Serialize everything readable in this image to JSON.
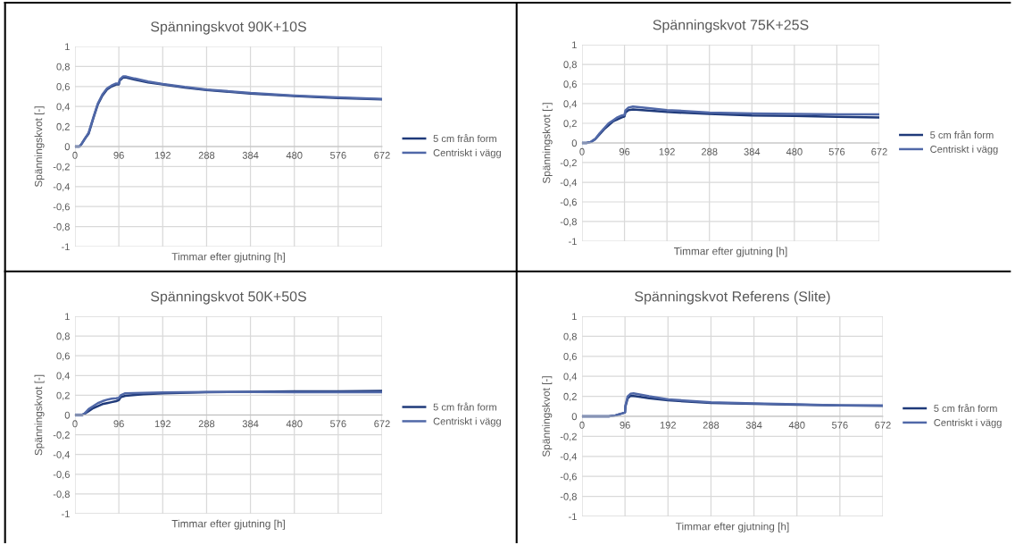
{
  "chart_data": [
    {
      "type": "line",
      "title": "Spänningskvot 90K+10S",
      "xlabel": "Timmar efter gjutning [h]",
      "ylabel": "Spänningskvot [-]",
      "xlim": [
        0,
        672
      ],
      "xticks": [
        0,
        96,
        192,
        288,
        384,
        480,
        576,
        672
      ],
      "ylim": [
        -1,
        1
      ],
      "yticks": [
        {
          "value": -1,
          "label": "-1"
        },
        {
          "value": -0.8,
          "label": "-0,8"
        },
        {
          "value": -0.6,
          "label": "-0,6"
        },
        {
          "value": -0.4,
          "label": "-0,4"
        },
        {
          "value": -0.2,
          "label": "-0,2"
        },
        {
          "value": 0,
          "label": "0"
        },
        {
          "value": 0.2,
          "label": "0,2"
        },
        {
          "value": 0.4,
          "label": "0,4"
        },
        {
          "value": 0.6,
          "label": "0,6"
        },
        {
          "value": 0.8,
          "label": "0,8"
        },
        {
          "value": 1,
          "label": "1"
        }
      ],
      "grid": true,
      "legend": "right",
      "series": [
        {
          "name": "5 cm från form",
          "color": "#1f3a7a",
          "x": [
            0,
            10,
            15,
            22,
            30,
            40,
            50,
            60,
            70,
            80,
            90,
            96,
            98,
            105,
            112,
            130,
            160,
            192,
            240,
            288,
            384,
            480,
            576,
            672
          ],
          "values": [
            0,
            0,
            0.03,
            0.08,
            0.13,
            0.28,
            0.42,
            0.51,
            0.57,
            0.6,
            0.62,
            0.62,
            0.66,
            0.69,
            0.69,
            0.67,
            0.64,
            0.62,
            0.59,
            0.565,
            0.53,
            0.505,
            0.485,
            0.47
          ]
        },
        {
          "name": "Centriskt i vägg",
          "color": "#5068a8",
          "x": [
            0,
            10,
            15,
            22,
            30,
            40,
            50,
            60,
            70,
            80,
            90,
            96,
            98,
            105,
            112,
            130,
            160,
            192,
            240,
            288,
            384,
            480,
            576,
            672
          ],
          "values": [
            0,
            0,
            0.03,
            0.08,
            0.14,
            0.29,
            0.43,
            0.52,
            0.58,
            0.61,
            0.63,
            0.63,
            0.67,
            0.7,
            0.7,
            0.68,
            0.65,
            0.625,
            0.595,
            0.57,
            0.535,
            0.51,
            0.49,
            0.475
          ]
        }
      ]
    },
    {
      "type": "line",
      "title": "Spänningskvot 75K+25S",
      "xlabel": "Timmar efter gjutning [h]",
      "ylabel": "Spänningskvot [-]",
      "xlim": [
        0,
        672
      ],
      "xticks": [
        0,
        96,
        192,
        288,
        384,
        480,
        576,
        672
      ],
      "ylim": [
        -1,
        1
      ],
      "yticks": [
        {
          "value": -1,
          "label": "-1"
        },
        {
          "value": -0.8,
          "label": "-0,8"
        },
        {
          "value": -0.6,
          "label": "-0,6"
        },
        {
          "value": -0.4,
          "label": "-0,4"
        },
        {
          "value": -0.2,
          "label": "-0,2"
        },
        {
          "value": 0,
          "label": "0"
        },
        {
          "value": 0.2,
          "label": "0,2"
        },
        {
          "value": 0.4,
          "label": "0,4"
        },
        {
          "value": 0.6,
          "label": "0,6"
        },
        {
          "value": 0.8,
          "label": "0,8"
        },
        {
          "value": 1,
          "label": "1"
        }
      ],
      "grid": true,
      "legend": "right",
      "series": [
        {
          "name": "5 cm från form",
          "color": "#1f3a7a",
          "x": [
            0,
            10,
            20,
            30,
            40,
            50,
            60,
            70,
            80,
            90,
            96,
            98,
            105,
            115,
            150,
            192,
            288,
            384,
            480,
            576,
            672
          ],
          "values": [
            0,
            0,
            0.01,
            0.04,
            0.09,
            0.14,
            0.18,
            0.22,
            0.24,
            0.26,
            0.27,
            0.31,
            0.335,
            0.34,
            0.33,
            0.315,
            0.295,
            0.28,
            0.275,
            0.265,
            0.26
          ]
        },
        {
          "name": "Centriskt i vägg",
          "color": "#5068a8",
          "x": [
            0,
            10,
            20,
            30,
            40,
            50,
            60,
            70,
            80,
            90,
            96,
            98,
            105,
            115,
            150,
            192,
            288,
            384,
            480,
            576,
            672
          ],
          "values": [
            0,
            0,
            0.01,
            0.04,
            0.1,
            0.15,
            0.2,
            0.23,
            0.26,
            0.28,
            0.285,
            0.33,
            0.36,
            0.37,
            0.355,
            0.335,
            0.31,
            0.3,
            0.295,
            0.29,
            0.29
          ]
        }
      ]
    },
    {
      "type": "line",
      "title": "Spänningskvot 50K+50S",
      "xlabel": "Timmar efter gjutning [h]",
      "ylabel": "Spänningskvot [-]",
      "xlim": [
        0,
        672
      ],
      "xticks": [
        0,
        96,
        192,
        288,
        384,
        480,
        576,
        672
      ],
      "ylim": [
        -1,
        1
      ],
      "yticks": [
        {
          "value": -1,
          "label": "-1"
        },
        {
          "value": -0.8,
          "label": "-0,8"
        },
        {
          "value": -0.6,
          "label": "-0,6"
        },
        {
          "value": -0.4,
          "label": "-0,4"
        },
        {
          "value": -0.2,
          "label": "-0,2"
        },
        {
          "value": 0,
          "label": "0"
        },
        {
          "value": 0.2,
          "label": "0,2"
        },
        {
          "value": 0.4,
          "label": "0,4"
        },
        {
          "value": 0.6,
          "label": "0,6"
        },
        {
          "value": 0.8,
          "label": "0,8"
        },
        {
          "value": 1,
          "label": "1"
        }
      ],
      "grid": true,
      "legend": "right",
      "series": [
        {
          "name": "5 cm från form",
          "color": "#1f3a7a",
          "x": [
            0,
            15,
            20,
            30,
            40,
            50,
            60,
            70,
            80,
            90,
            96,
            100,
            110,
            150,
            192,
            288,
            384,
            480,
            576,
            672
          ],
          "values": [
            0,
            0,
            0.01,
            0.04,
            0.07,
            0.09,
            0.11,
            0.12,
            0.13,
            0.14,
            0.15,
            0.18,
            0.195,
            0.21,
            0.22,
            0.23,
            0.235,
            0.24,
            0.24,
            0.245
          ]
        },
        {
          "name": "Centriskt i vägg",
          "color": "#5068a8",
          "x": [
            0,
            15,
            20,
            30,
            40,
            50,
            60,
            70,
            80,
            90,
            96,
            100,
            110,
            150,
            192,
            288,
            384,
            480,
            576,
            672
          ],
          "values": [
            0,
            0,
            0.01,
            0.06,
            0.09,
            0.12,
            0.14,
            0.155,
            0.165,
            0.17,
            0.175,
            0.2,
            0.22,
            0.225,
            0.228,
            0.232,
            0.232,
            0.23,
            0.23,
            0.23
          ]
        }
      ]
    },
    {
      "type": "line",
      "title": "Spänningskvot Referens (Slite)",
      "xlabel": "Timmar efter gjutning [h]",
      "ylabel": "Spänningskvot [-]",
      "xlim": [
        0,
        672
      ],
      "xticks": [
        0,
        96,
        192,
        288,
        384,
        480,
        576,
        672
      ],
      "ylim": [
        -1,
        1
      ],
      "yticks": [
        {
          "value": -1,
          "label": "-1"
        },
        {
          "value": -0.8,
          "label": "-0,8"
        },
        {
          "value": -0.6,
          "label": "-0,6"
        },
        {
          "value": -0.4,
          "label": "-0,4"
        },
        {
          "value": -0.2,
          "label": "-0,2"
        },
        {
          "value": 0,
          "label": "0"
        },
        {
          "value": 0.2,
          "label": "0,2"
        },
        {
          "value": 0.4,
          "label": "0,4"
        },
        {
          "value": 0.6,
          "label": "0,6"
        },
        {
          "value": 0.8,
          "label": "0,8"
        },
        {
          "value": 1,
          "label": "1"
        }
      ],
      "grid": true,
      "legend": "right",
      "series": [
        {
          "name": "5 cm från form",
          "color": "#1f3a7a",
          "x": [
            0,
            60,
            75,
            90,
            96,
            97,
            102,
            108,
            120,
            150,
            192,
            288,
            384,
            480,
            576,
            672
          ],
          "values": [
            0,
            0,
            0.01,
            0.03,
            0.04,
            0.1,
            0.18,
            0.205,
            0.2,
            0.18,
            0.16,
            0.135,
            0.125,
            0.115,
            0.11,
            0.105
          ]
        },
        {
          "name": "Centriskt i vägg",
          "color": "#5068a8",
          "x": [
            0,
            60,
            75,
            90,
            96,
            97,
            102,
            108,
            115,
            150,
            192,
            288,
            384,
            480,
            576,
            672
          ],
          "values": [
            0,
            0,
            0.01,
            0.03,
            0.04,
            0.11,
            0.2,
            0.225,
            0.23,
            0.2,
            0.17,
            0.14,
            0.13,
            0.12,
            0.11,
            0.11
          ]
        }
      ]
    }
  ]
}
